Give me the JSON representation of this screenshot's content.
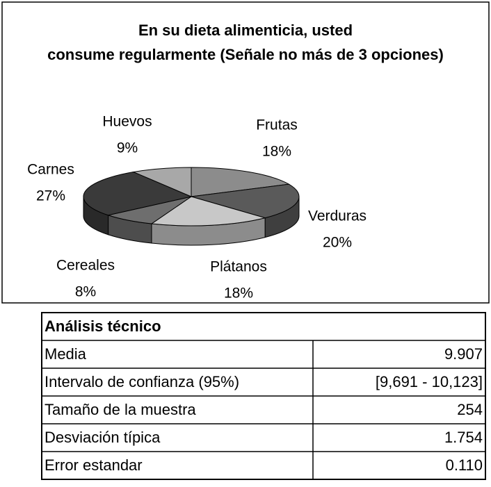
{
  "chart_data": {
    "type": "pie",
    "title": "En su dieta alimenticia, usted consume regularmente (Señale no más de 3 opciones)",
    "categories": [
      "Frutas",
      "Verduras",
      "Plátanos",
      "Cereales",
      "Carnes",
      "Huevos"
    ],
    "values": [
      18,
      20,
      18,
      8,
      27,
      9
    ],
    "value_labels": [
      "18%",
      "20%",
      "18%",
      "8%",
      "27%",
      "9%"
    ],
    "colors": [
      "#8c8c8c",
      "#5a5a5a",
      "#c8c8c8",
      "#6e6e6e",
      "#3a3a3a",
      "#a8a8a8"
    ]
  },
  "table": {
    "title": "Análisis técnico",
    "rows": [
      [
        "Media",
        "9.907"
      ],
      [
        "Intervalo de confianza (95%)",
        "[9,691 - 10,123]"
      ],
      [
        "Tamaño de la muestra",
        "254"
      ],
      [
        "Desviación típica",
        "1.754"
      ],
      [
        "Error estandar",
        "0.110"
      ]
    ]
  }
}
